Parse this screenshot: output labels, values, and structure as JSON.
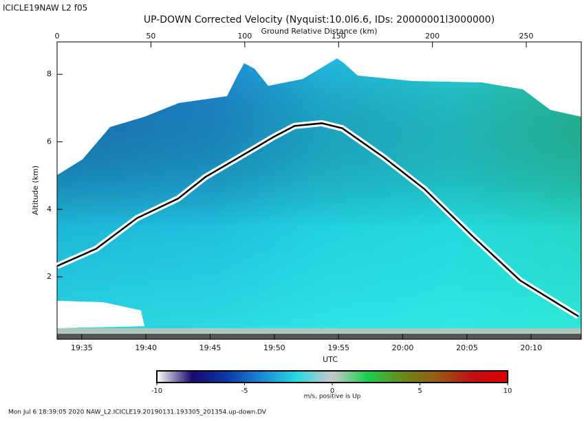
{
  "chart_data": {
    "type": "line",
    "header": "ICICLE19NAW L2 f05",
    "title": "UP-DOWN Corrected Velocity (Nyquist:10.0l6.6, IDs: 20000001l3000000)",
    "x2label": "Ground Relative Distance (km)",
    "xlabel": "UTC",
    "ylabel": "Altitude (km)",
    "footer": "Mon Jul  6 18:39:05 2020 NAW_L2.ICICLE19.20190131.193305_201354.up-down.DV",
    "xlim": [
      1173.08,
      1213.9
    ],
    "xticks": [
      {
        "value": 1175,
        "label": "19:35"
      },
      {
        "value": 1180,
        "label": "19:40"
      },
      {
        "value": 1185,
        "label": "19:45"
      },
      {
        "value": 1190,
        "label": "19:50"
      },
      {
        "value": 1195,
        "label": "19:55"
      },
      {
        "value": 1200,
        "label": "20:00"
      },
      {
        "value": 1205,
        "label": "20:05"
      },
      {
        "value": 1210,
        "label": "20:10"
      }
    ],
    "x2lim": [
      0,
      279.3
    ],
    "x2ticks": [
      0,
      50,
      100,
      150,
      200,
      250
    ],
    "ylim": [
      0.15,
      8.96
    ],
    "yticks": [
      2,
      4,
      6,
      8
    ],
    "series": [
      {
        "color": "#000000",
        "x": [
          1173.08,
          1176.12,
          1179.31,
          1182.51,
          1184.64,
          1187.3,
          1189.97,
          1191.57,
          1193.7,
          1195.3,
          1198.49,
          1201.69,
          1205.42,
          1209.15,
          1213.68
        ],
        "values": [
          2.32,
          2.83,
          3.74,
          4.32,
          4.96,
          5.55,
          6.15,
          6.47,
          6.55,
          6.4,
          5.55,
          4.6,
          3.21,
          1.89,
          0.83
        ]
      }
    ],
    "colorbar": {
      "label": "m/s, positive is Up",
      "clim": [
        -10,
        10
      ],
      "ticks": [
        -10,
        -5,
        0,
        5,
        10
      ],
      "colors": [
        "#ffffff",
        "#1a0a6e",
        "#0a3aa8",
        "#1a8ad8",
        "#2ad8e0",
        "#c8c8c8",
        "#18d050",
        "#6a8a18",
        "#9a5a10",
        "#c01010",
        "#e00000"
      ]
    }
  }
}
